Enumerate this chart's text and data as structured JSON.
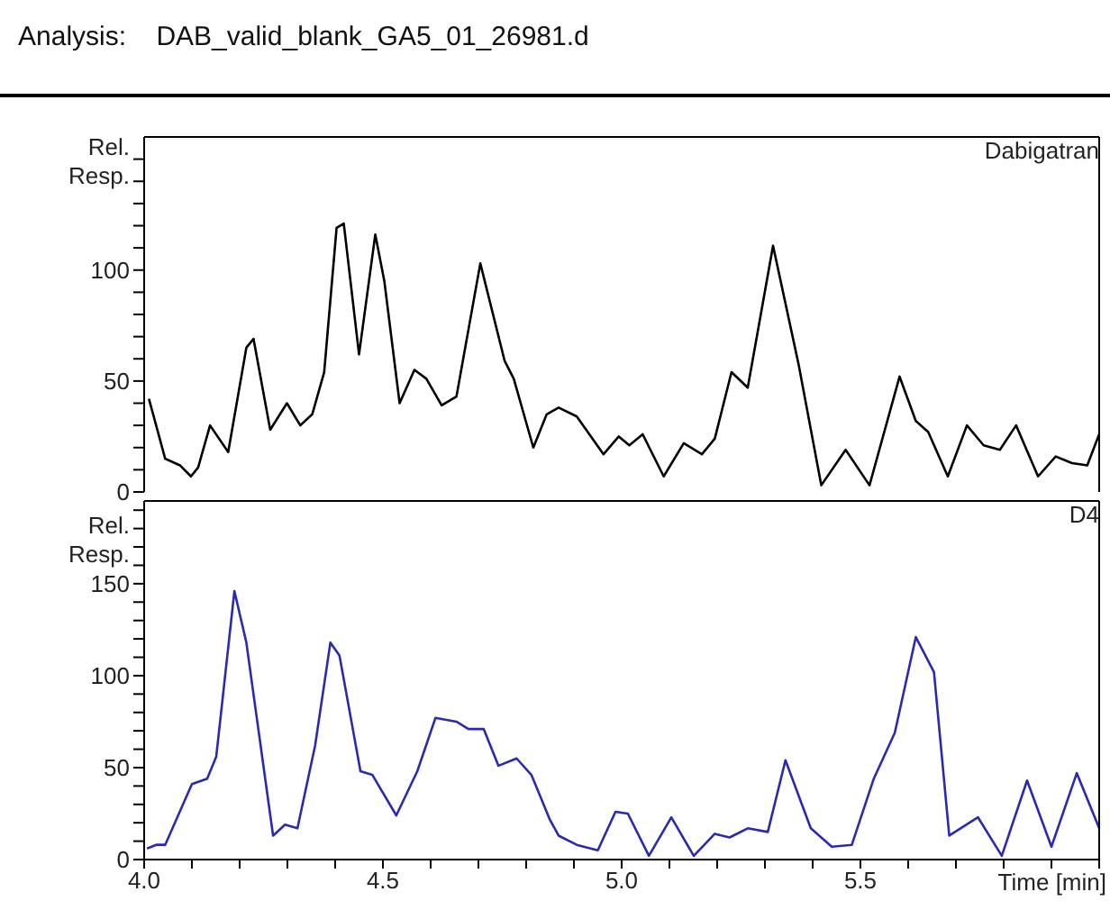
{
  "chart_data": [
    {
      "type": "line",
      "title": "Analysis:    DAB_valid_blank_GA5_01_26981.d",
      "ylabel": "Rel. Resp.",
      "tick_labels": "y",
      "xlim": [
        4.0,
        6.0
      ],
      "ylim": [
        0,
        160
      ],
      "yticks": [
        0,
        {
          "value": 10,
          "label": null
        },
        {
          "value": 20,
          "label": null
        },
        {
          "value": 30,
          "label": null
        },
        {
          "value": 40,
          "label": null
        },
        50,
        {
          "value": 60,
          "label": null
        },
        {
          "value": 70,
          "label": null
        },
        {
          "value": 80,
          "label": null
        },
        {
          "value": 90,
          "label": null
        },
        100,
        {
          "value": 110,
          "label": null
        },
        {
          "value": 120,
          "label": null
        },
        {
          "value": 130,
          "label": null
        },
        {
          "value": 140,
          "label": null
        },
        {
          "value": 150,
          "label": null
        }
      ],
      "series": [
        {
          "name": "Dabigatran",
          "color": "#000000",
          "x": [
            4.01,
            4.044,
            4.075,
            4.098,
            4.113,
            4.138,
            4.176,
            4.214,
            4.229,
            4.264,
            4.299,
            4.327,
            4.352,
            4.377,
            4.403,
            4.418,
            4.45,
            4.484,
            4.503,
            4.535,
            4.566,
            4.591,
            4.623,
            4.654,
            4.704,
            4.755,
            4.774,
            4.815,
            4.843,
            4.868,
            4.906,
            4.962,
            4.994,
            5.016,
            5.044,
            5.088,
            5.13,
            5.168,
            5.195,
            5.23,
            5.264,
            5.317,
            5.371,
            5.418,
            5.469,
            5.519,
            5.582,
            5.616,
            5.642,
            5.683,
            5.723,
            5.758,
            5.792,
            5.826,
            5.872,
            5.909,
            5.943,
            5.975,
            6.0
          ],
          "values": [
            42,
            15,
            12,
            7,
            11,
            30,
            18,
            65,
            69,
            28,
            40,
            30,
            35,
            54,
            119,
            121,
            62,
            116,
            95,
            40,
            55,
            51,
            39,
            43,
            103,
            59,
            51,
            20,
            35,
            38,
            34,
            17,
            25,
            21,
            26,
            7,
            22,
            17,
            24,
            54,
            47,
            111,
            57,
            3,
            19,
            3,
            52,
            32,
            27,
            7,
            30,
            21,
            19,
            30,
            7,
            16,
            13,
            12,
            26
          ]
        }
      ]
    },
    {
      "type": "line",
      "ylabel": "Rel. Resp.",
      "xlabel": "Time [min]",
      "xlim": [
        4.0,
        6.0
      ],
      "ylim": [
        0,
        195
      ],
      "xticks": [
        {
          "value": 4.0,
          "label": "4.0"
        },
        {
          "value": 4.1,
          "label": null
        },
        {
          "value": 4.2,
          "label": null
        },
        {
          "value": 4.3,
          "label": null
        },
        {
          "value": 4.4,
          "label": null
        },
        {
          "value": 4.5,
          "label": "4.5"
        },
        {
          "value": 4.6,
          "label": null
        },
        {
          "value": 4.7,
          "label": null
        },
        {
          "value": 4.8,
          "label": null
        },
        {
          "value": 4.9,
          "label": null
        },
        {
          "value": 5.0,
          "label": "5.0"
        },
        {
          "value": 5.1,
          "label": null
        },
        {
          "value": 5.2,
          "label": null
        },
        {
          "value": 5.3,
          "label": null
        },
        {
          "value": 5.4,
          "label": null
        },
        {
          "value": 5.5,
          "label": "5.5"
        },
        {
          "value": 5.6,
          "label": null
        },
        {
          "value": 5.7,
          "label": null
        },
        {
          "value": 5.8,
          "label": null
        },
        {
          "value": 5.9,
          "label": null
        },
        {
          "value": 6.0,
          "label": null
        }
      ],
      "yticks": [
        0,
        {
          "value": 10,
          "label": null
        },
        {
          "value": 20,
          "label": null
        },
        {
          "value": 30,
          "label": null
        },
        {
          "value": 40,
          "label": null
        },
        50,
        {
          "value": 60,
          "label": null
        },
        {
          "value": 70,
          "label": null
        },
        {
          "value": 80,
          "label": null
        },
        {
          "value": 90,
          "label": null
        },
        100,
        {
          "value": 110,
          "label": null
        },
        {
          "value": 120,
          "label": null
        },
        {
          "value": 130,
          "label": null
        },
        {
          "value": 140,
          "label": null
        },
        150,
        {
          "value": 160,
          "label": null
        },
        {
          "value": 170,
          "label": null
        },
        {
          "value": 180,
          "label": null
        },
        {
          "value": 190,
          "label": null
        }
      ],
      "series": [
        {
          "name": "D4",
          "color": "#2a2ab0",
          "x": [
            4.006,
            4.025,
            4.044,
            4.1,
            4.132,
            4.151,
            4.189,
            4.214,
            4.27,
            4.295,
            4.321,
            4.358,
            4.39,
            4.409,
            4.453,
            4.478,
            4.528,
            4.572,
            4.61,
            4.654,
            4.679,
            4.711,
            4.742,
            4.78,
            4.811,
            4.849,
            4.868,
            4.906,
            4.95,
            4.987,
            5.013,
            5.057,
            5.104,
            5.151,
            5.195,
            5.226,
            5.264,
            5.306,
            5.343,
            5.396,
            5.44,
            5.482,
            5.528,
            5.572,
            5.616,
            5.654,
            5.686,
            5.746,
            5.796,
            5.849,
            5.9,
            5.953,
            6.0
          ],
          "values": [
            6,
            8,
            8,
            41,
            44,
            56,
            146,
            118,
            13,
            19,
            17,
            62,
            118,
            111,
            48,
            46,
            24,
            48,
            77,
            75,
            71,
            71,
            51,
            55,
            46,
            22,
            13,
            8,
            5,
            26,
            25,
            2,
            23,
            2,
            14,
            12,
            17,
            15,
            54,
            17,
            7,
            8,
            44,
            69,
            121,
            102,
            13,
            23,
            2,
            43,
            7,
            47,
            17
          ]
        }
      ]
    }
  ]
}
